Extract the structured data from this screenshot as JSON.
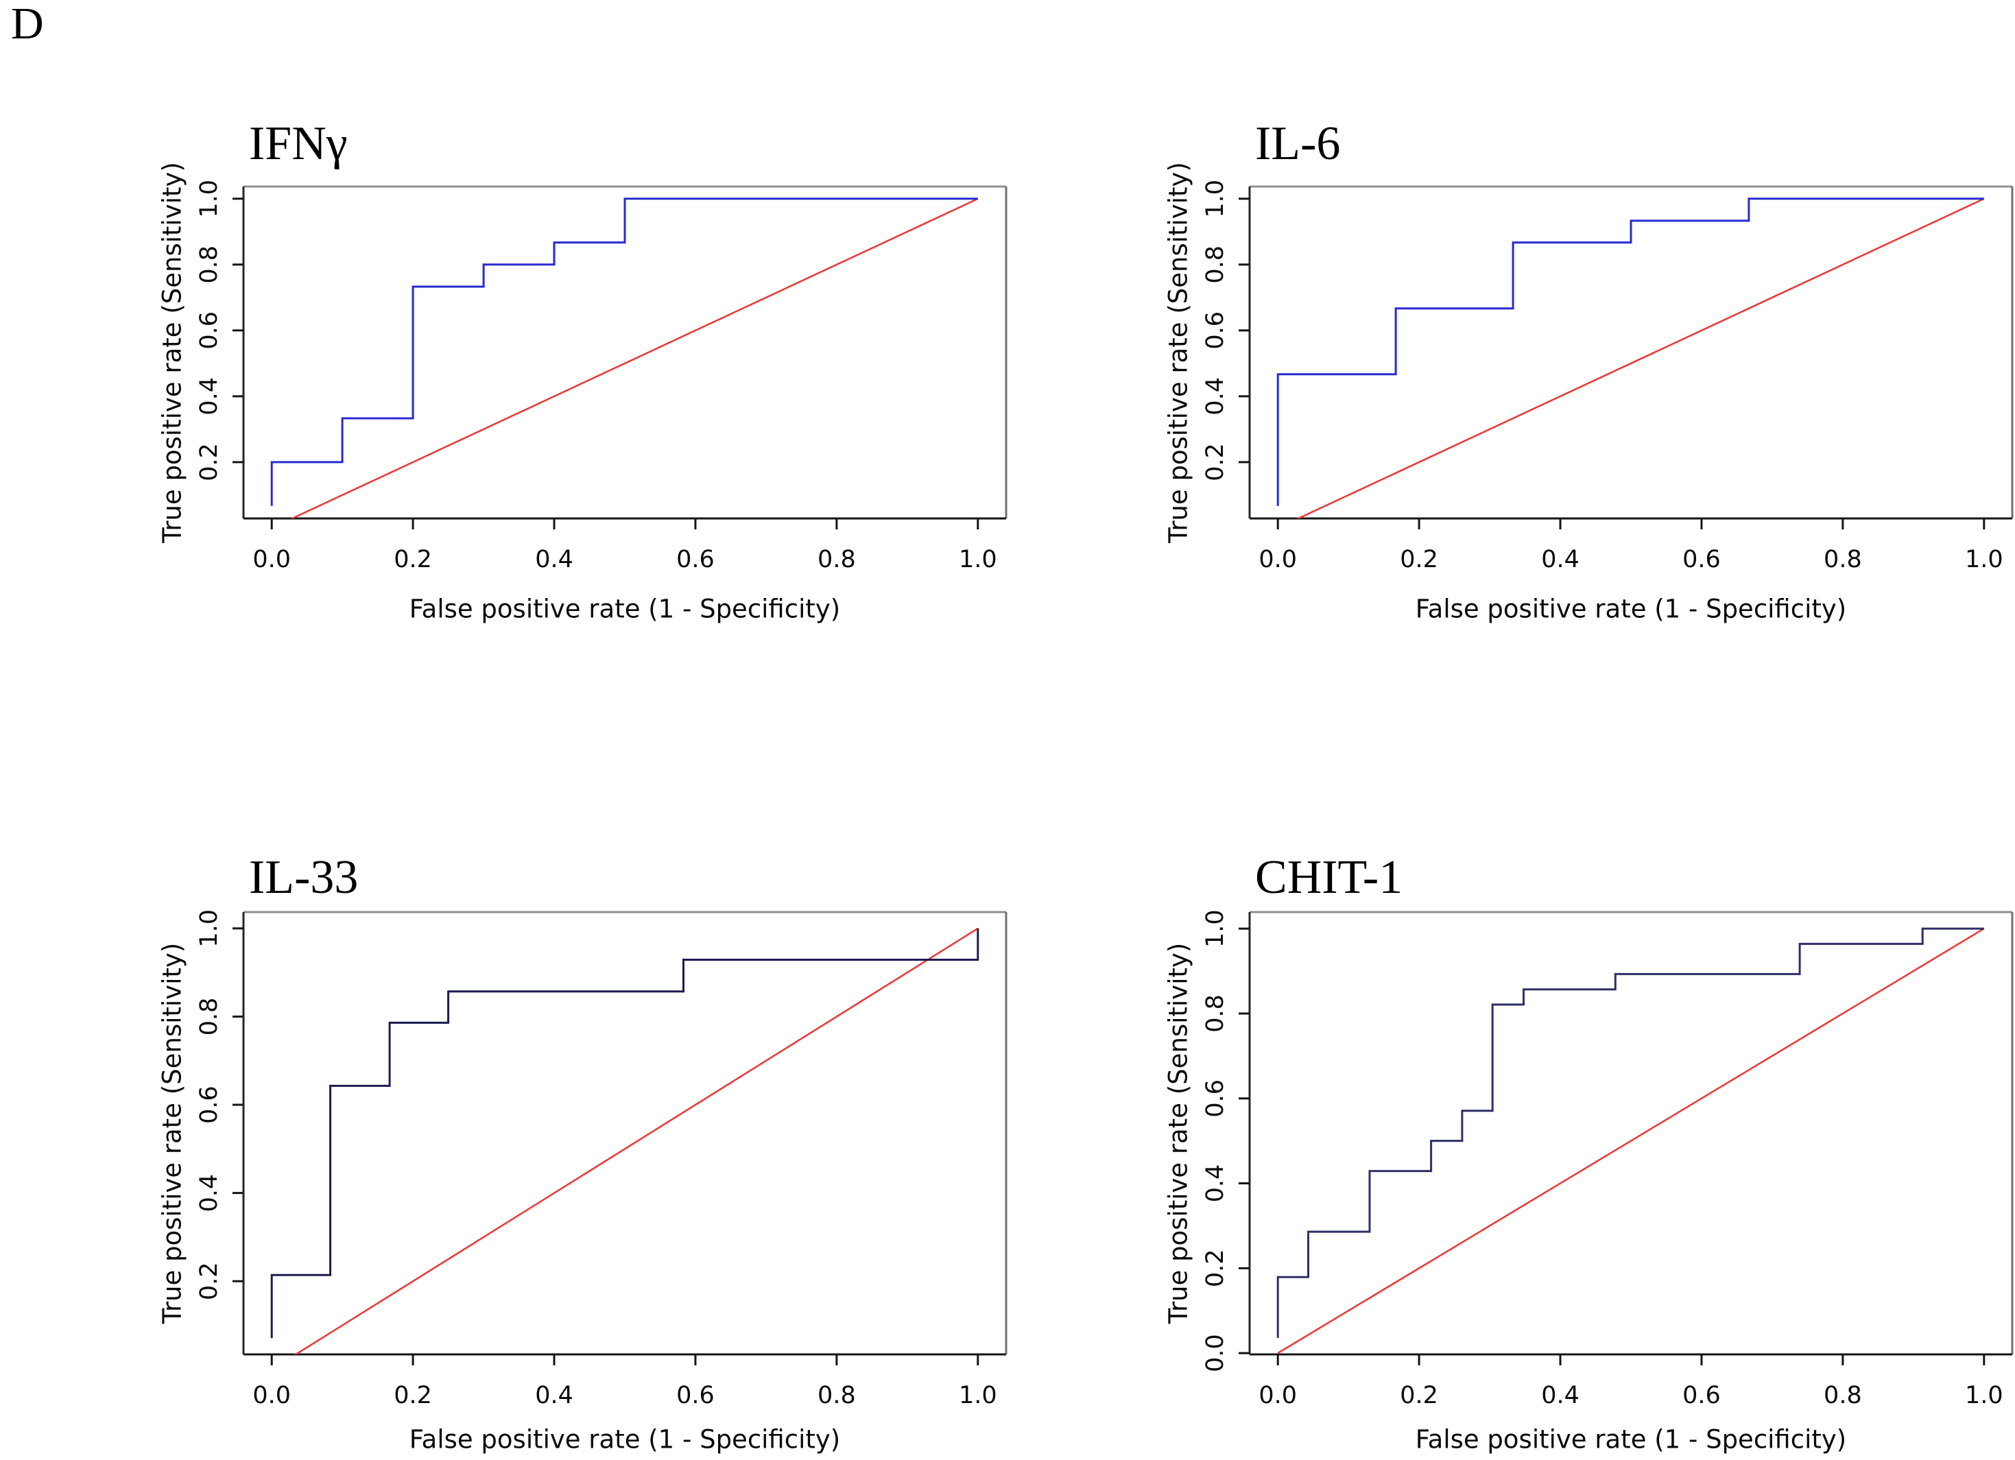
{
  "figure": {
    "label": "D"
  },
  "chart_data": [
    {
      "type": "line",
      "title": "IFNγ",
      "xlabel": "False positive rate (1 - Specificity)",
      "ylabel": "True positive rate (Sensitivity)",
      "xlim": [
        -0.04,
        1.04
      ],
      "ylim": [
        0.029,
        1.037
      ],
      "grid": false,
      "legend": "none",
      "x_ticks": [
        [
          "0.0",
          0
        ],
        [
          "0.2",
          0.2
        ],
        [
          "0.4",
          0.4
        ],
        [
          "0.6",
          0.6
        ],
        [
          "0.8",
          0.8
        ],
        [
          "1.0",
          1
        ]
      ],
      "y_ticks": [
        [
          "0.2",
          0.2
        ],
        [
          "0.4",
          0.4
        ],
        [
          "0.6",
          0.6
        ],
        [
          "0.8",
          0.8
        ],
        [
          "1.0",
          1
        ]
      ],
      "series": [
        {
          "name": "ROC curve",
          "color": "#2a2ad0",
          "points": [
            [
              0,
              0.067
            ],
            [
              0,
              0.2
            ],
            [
              0.1,
              0.2
            ],
            [
              0.1,
              0.333
            ],
            [
              0.2,
              0.333
            ],
            [
              0.2,
              0.733
            ],
            [
              0.3,
              0.733
            ],
            [
              0.3,
              0.8
            ],
            [
              0.4,
              0.8
            ],
            [
              0.4,
              0.867
            ],
            [
              0.5,
              0.867
            ],
            [
              0.5,
              1
            ],
            [
              1,
              1
            ]
          ]
        },
        {
          "name": "Reference diagonal",
          "color": "#f03535",
          "points": [
            [
              0,
              0
            ],
            [
              1,
              1
            ]
          ]
        }
      ]
    },
    {
      "type": "line",
      "title": "IL-6",
      "xlabel": "False positive rate (1 - Specificity)",
      "ylabel": "True positive rate (Sensitivity)",
      "xlim": [
        -0.04,
        1.04
      ],
      "ylim": [
        0.029,
        1.037
      ],
      "grid": false,
      "legend": "none",
      "x_ticks": [
        [
          "0.0",
          0
        ],
        [
          "0.2",
          0.2
        ],
        [
          "0.4",
          0.4
        ],
        [
          "0.6",
          0.6
        ],
        [
          "0.8",
          0.8
        ],
        [
          "1.0",
          1
        ]
      ],
      "y_ticks": [
        [
          "0.2",
          0.2
        ],
        [
          "0.4",
          0.4
        ],
        [
          "0.6",
          0.6
        ],
        [
          "0.8",
          0.8
        ],
        [
          "1.0",
          1
        ]
      ],
      "series": [
        {
          "name": "ROC curve",
          "color": "#2a2ad0",
          "points": [
            [
              0,
              0.067
            ],
            [
              0,
              0.467
            ],
            [
              0.167,
              0.467
            ],
            [
              0.167,
              0.667
            ],
            [
              0.333,
              0.667
            ],
            [
              0.333,
              0.867
            ],
            [
              0.5,
              0.867
            ],
            [
              0.5,
              0.933
            ],
            [
              0.667,
              0.933
            ],
            [
              0.667,
              1
            ],
            [
              1,
              1
            ]
          ]
        },
        {
          "name": "Reference diagonal",
          "color": "#f03535",
          "points": [
            [
              0,
              0
            ],
            [
              1,
              1
            ]
          ]
        }
      ]
    },
    {
      "type": "line",
      "title": "IL-33",
      "xlabel": "False positive rate (1 - Specificity)",
      "ylabel": "True positive rate (Sensitivity)",
      "xlim": [
        -0.04,
        1.04
      ],
      "ylim": [
        0.034,
        1.037
      ],
      "grid": false,
      "legend": "none",
      "x_ticks": [
        [
          "0.0",
          0
        ],
        [
          "0.2",
          0.2
        ],
        [
          "0.4",
          0.4
        ],
        [
          "0.6",
          0.6
        ],
        [
          "0.8",
          0.8
        ],
        [
          "1.0",
          1
        ]
      ],
      "y_ticks": [
        [
          "0.2",
          0.2
        ],
        [
          "0.4",
          0.4
        ],
        [
          "0.6",
          0.6
        ],
        [
          "0.8",
          0.8
        ],
        [
          "1.0",
          1
        ]
      ],
      "series": [
        {
          "name": "ROC curve",
          "color": "#1d1d4e",
          "points": [
            [
              0,
              0.071
            ],
            [
              0,
              0.214
            ],
            [
              0.083,
              0.214
            ],
            [
              0.083,
              0.643
            ],
            [
              0.167,
              0.643
            ],
            [
              0.167,
              0.786
            ],
            [
              0.25,
              0.786
            ],
            [
              0.25,
              0.857
            ],
            [
              0.583,
              0.857
            ],
            [
              0.583,
              0.929
            ],
            [
              1,
              0.929
            ],
            [
              1,
              1
            ]
          ]
        },
        {
          "name": "Reference diagonal",
          "color": "#f03535",
          "points": [
            [
              0,
              0
            ],
            [
              1,
              1
            ]
          ]
        }
      ]
    },
    {
      "type": "line",
      "title": "CHIT-1",
      "xlabel": "False positive rate (1 - Specificity)",
      "ylabel": "True positive rate (Sensitivity)",
      "xlim": [
        -0.04,
        1.04
      ],
      "ylim": [
        -0.003,
        1.039
      ],
      "grid": false,
      "legend": "none",
      "x_ticks": [
        [
          "0.0",
          0
        ],
        [
          "0.2",
          0.2
        ],
        [
          "0.4",
          0.4
        ],
        [
          "0.6",
          0.6
        ],
        [
          "0.8",
          0.8
        ],
        [
          "1.0",
          1
        ]
      ],
      "y_ticks": [
        [
          "0.0",
          0
        ],
        [
          "0.2",
          0.2
        ],
        [
          "0.4",
          0.4
        ],
        [
          "0.6",
          0.6
        ],
        [
          "0.8",
          0.8
        ],
        [
          "1.0",
          1
        ]
      ],
      "series": [
        {
          "name": "ROC curve",
          "color": "#2f2f66",
          "points": [
            [
              0,
              0.036
            ],
            [
              0,
              0.179
            ],
            [
              0.043,
              0.179
            ],
            [
              0.043,
              0.286
            ],
            [
              0.13,
              0.286
            ],
            [
              0.13,
              0.429
            ],
            [
              0.217,
              0.429
            ],
            [
              0.217,
              0.5
            ],
            [
              0.261,
              0.5
            ],
            [
              0.261,
              0.571
            ],
            [
              0.304,
              0.571
            ],
            [
              0.304,
              0.821
            ],
            [
              0.348,
              0.821
            ],
            [
              0.348,
              0.857
            ],
            [
              0.478,
              0.857
            ],
            [
              0.478,
              0.893
            ],
            [
              0.739,
              0.893
            ],
            [
              0.739,
              0.964
            ],
            [
              0.913,
              0.964
            ],
            [
              0.913,
              1
            ],
            [
              1,
              1
            ]
          ]
        },
        {
          "name": "Reference diagonal",
          "color": "#f03535",
          "points": [
            [
              0,
              0
            ],
            [
              1,
              1
            ]
          ]
        }
      ]
    }
  ]
}
